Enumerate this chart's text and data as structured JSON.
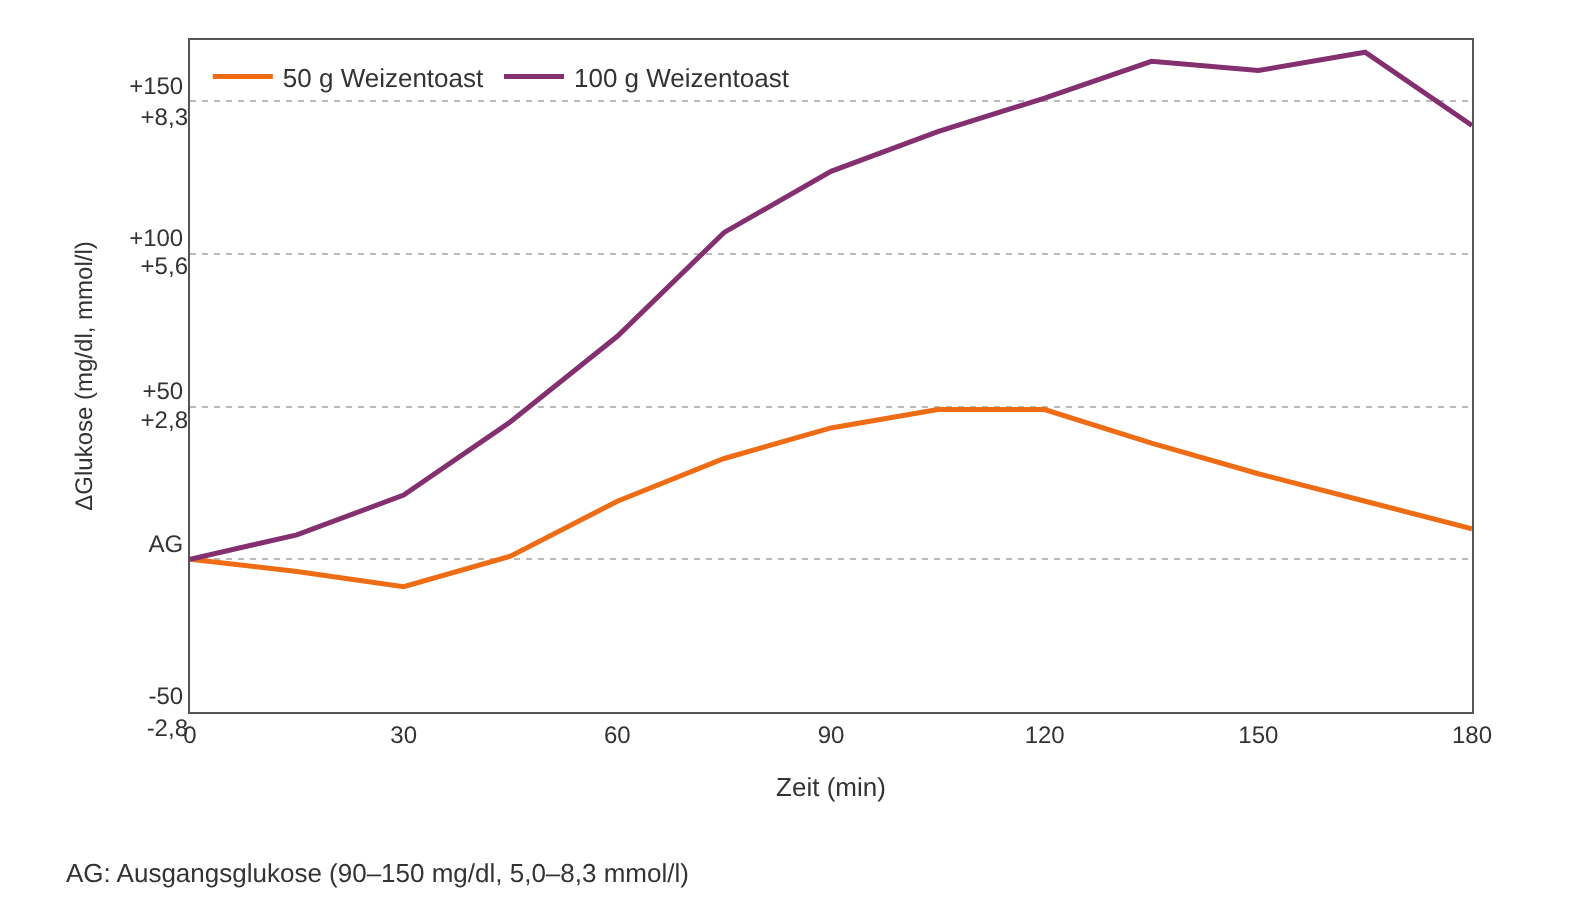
{
  "chart_data": {
    "type": "line",
    "xlabel": "Zeit (min)",
    "ylabel": "ΔGlukose (mg/dl, mmol/l)",
    "x": [
      0,
      15,
      30,
      45,
      60,
      75,
      90,
      105,
      120,
      135,
      150,
      165,
      180
    ],
    "series": [
      {
        "name": "50 g Weizentoast",
        "color": "#ee6c14",
        "values": [
          0,
          -4,
          -9,
          1,
          19,
          33,
          43,
          49,
          49,
          38,
          28,
          19,
          10
        ]
      },
      {
        "name": "100 g Weizentoast",
        "color": "#843070",
        "values": [
          0,
          8,
          21,
          45,
          73,
          107,
          127,
          140,
          151,
          163,
          160,
          166,
          142
        ]
      }
    ],
    "xlim": [
      0,
      180
    ],
    "xticks": [
      0,
      30,
      60,
      90,
      120,
      150,
      180
    ],
    "ylim": [
      -50,
      170
    ],
    "yticks": [
      {
        "value": -50,
        "label": "-50"
      },
      {
        "value": 0,
        "label": "AG"
      },
      {
        "value": 50,
        "label": "+50"
      },
      {
        "value": 100,
        "label": "+100"
      },
      {
        "value": 150,
        "label": "+150"
      }
    ],
    "y2lim": [
      -2.8,
      9.4
    ],
    "y2ticks": [
      {
        "value": -2.8,
        "label": "-2,8"
      },
      {
        "value": 2.8,
        "label": "+2,8"
      },
      {
        "value": 5.6,
        "label": "+5,6"
      },
      {
        "value": 8.3,
        "label": "+8,3"
      }
    ],
    "grid": "y",
    "legend": "top left",
    "marker": "none",
    "line_style": "solid",
    "annotations": [
      "AG: Ausgangsglukose (90–150 mg/dl, 5,0–8,3 mmol/l)"
    ]
  }
}
